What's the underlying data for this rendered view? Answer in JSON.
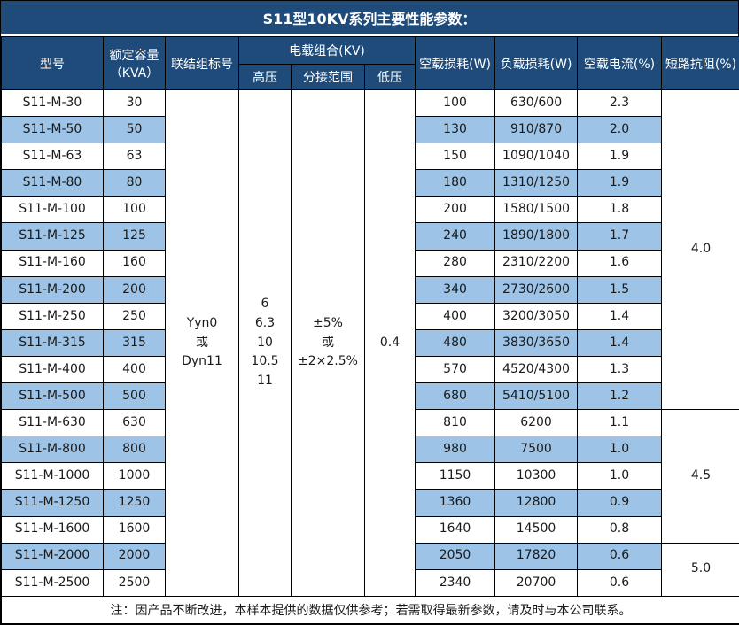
{
  "title": "S11型10KV系列主要性能参数：",
  "colors": {
    "header_bg": "#1F4B7A",
    "header_text": "#FFFFFF",
    "row_highlight_bg": "#9DC3E6",
    "row_text": "#1A1A1A",
    "border": "#000000"
  },
  "header": {
    "model": "型号",
    "capacity_line1": "额定容量",
    "capacity_line2": "（KVA）",
    "vector_group": "联结组标号",
    "voltage_combo": "电载组合(KV)",
    "hv": "高压",
    "tap_range": "分接范围",
    "lv": "低压",
    "no_load_loss": "空载损耗(W)",
    "load_loss": "负载损耗(W)",
    "no_load_current": "空载电流(%)",
    "impedance": "短路抗阻(%)"
  },
  "merged": {
    "vector_group": [
      "Yyn0",
      "或",
      "Dyn11"
    ],
    "hv": [
      "6",
      "6.3",
      "10",
      "10.5",
      "11"
    ],
    "tap_range": [
      "±5%",
      "或",
      "±2×2.5%"
    ],
    "lv": "0.4"
  },
  "rows": [
    {
      "model": "S11-M-30",
      "capacity": "30",
      "no_load_loss": "100",
      "load_loss": "630/600",
      "no_load_current": "2.3",
      "highlighted": false
    },
    {
      "model": "S11-M-50",
      "capacity": "50",
      "no_load_loss": "130",
      "load_loss": "910/870",
      "no_load_current": "2.0",
      "highlighted": true
    },
    {
      "model": "S11-M-63",
      "capacity": "63",
      "no_load_loss": "150",
      "load_loss": "1090/1040",
      "no_load_current": "1.9",
      "highlighted": false
    },
    {
      "model": "S11-M-80",
      "capacity": "80",
      "no_load_loss": "180",
      "load_loss": "1310/1250",
      "no_load_current": "1.9",
      "highlighted": true
    },
    {
      "model": "S11-M-100",
      "capacity": "100",
      "no_load_loss": "200",
      "load_loss": "1580/1500",
      "no_load_current": "1.8",
      "highlighted": false
    },
    {
      "model": "S11-M-125",
      "capacity": "125",
      "no_load_loss": "240",
      "load_loss": "1890/1800",
      "no_load_current": "1.7",
      "highlighted": true
    },
    {
      "model": "S11-M-160",
      "capacity": "160",
      "no_load_loss": "280",
      "load_loss": "2310/2200",
      "no_load_current": "1.6",
      "highlighted": false
    },
    {
      "model": "S11-M-200",
      "capacity": "200",
      "no_load_loss": "340",
      "load_loss": "2730/2600",
      "no_load_current": "1.5",
      "highlighted": true
    },
    {
      "model": "S11-M-250",
      "capacity": "250",
      "no_load_loss": "400",
      "load_loss": "3200/3050",
      "no_load_current": "1.4",
      "highlighted": false
    },
    {
      "model": "S11-M-315",
      "capacity": "315",
      "no_load_loss": "480",
      "load_loss": "3830/3650",
      "no_load_current": "1.4",
      "highlighted": true
    },
    {
      "model": "S11-M-400",
      "capacity": "400",
      "no_load_loss": "570",
      "load_loss": "4520/4300",
      "no_load_current": "1.3",
      "highlighted": false
    },
    {
      "model": "S11-M-500",
      "capacity": "500",
      "no_load_loss": "680",
      "load_loss": "5410/5100",
      "no_load_current": "1.2",
      "highlighted": true
    },
    {
      "model": "S11-M-630",
      "capacity": "630",
      "no_load_loss": "810",
      "load_loss": "6200",
      "no_load_current": "1.1",
      "highlighted": false
    },
    {
      "model": "S11-M-800",
      "capacity": "800",
      "no_load_loss": "980",
      "load_loss": "7500",
      "no_load_current": "1.0",
      "highlighted": true
    },
    {
      "model": "S11-M-1000",
      "capacity": "1000",
      "no_load_loss": "1150",
      "load_loss": "10300",
      "no_load_current": "1.0",
      "highlighted": false
    },
    {
      "model": "S11-M-1250",
      "capacity": "1250",
      "no_load_loss": "1360",
      "load_loss": "12800",
      "no_load_current": "0.9",
      "highlighted": true
    },
    {
      "model": "S11-M-1600",
      "capacity": "1600",
      "no_load_loss": "1640",
      "load_loss": "14500",
      "no_load_current": "0.8",
      "highlighted": false
    },
    {
      "model": "S11-M-2000",
      "capacity": "2000",
      "no_load_loss": "2050",
      "load_loss": "17820",
      "no_load_current": "0.6",
      "highlighted": true
    },
    {
      "model": "S11-M-2500",
      "capacity": "2500",
      "no_load_loss": "2340",
      "load_loss": "20700",
      "no_load_current": "0.6",
      "highlighted": false
    }
  ],
  "impedance_groups": [
    {
      "value": "4.0",
      "rows": 12
    },
    {
      "value": "4.5",
      "rows": 5
    },
    {
      "value": "5.0",
      "rows": 2
    }
  ],
  "footer_note": "注：因产品不断改进，本样本提供的数据仅供参考；若需取得最新参数，请及时与本公司联系。"
}
